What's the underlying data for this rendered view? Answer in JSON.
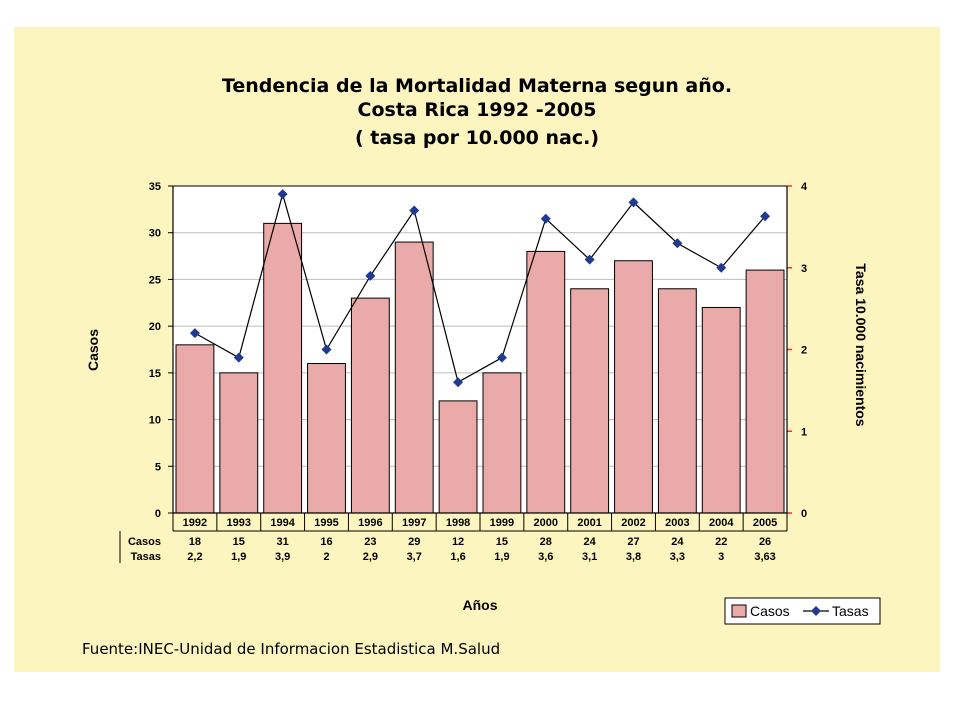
{
  "title": {
    "line1": "Tendencia de la Mortalidad Materna segun año.",
    "line2": "Costa Rica 1992 -2005",
    "line3": "( tasa por 10.000 nac.)"
  },
  "source": "Fuente:INEC-Unidad de Informacion Estadistica M.Salud",
  "colors": {
    "background": "#fdf5c0",
    "bar": "#eaaaaa",
    "line": "#000000",
    "marker": "#1f3a8f"
  },
  "chart_data": {
    "type": "bar",
    "categories": [
      "1992",
      "1993",
      "1994",
      "1995",
      "1996",
      "1997",
      "1998",
      "1999",
      "2000",
      "2001",
      "2002",
      "2003",
      "2004",
      "2005"
    ],
    "series": [
      {
        "name": "Casos",
        "type": "bar",
        "axis": "left",
        "values": [
          18,
          15,
          31,
          16,
          23,
          29,
          12,
          15,
          28,
          24,
          27,
          24,
          22,
          26
        ]
      },
      {
        "name": "Tasas",
        "type": "line",
        "axis": "right",
        "values": [
          2.2,
          1.9,
          3.9,
          2,
          2.9,
          3.7,
          1.6,
          1.9,
          3.6,
          3.1,
          3.8,
          3.3,
          3,
          3.63
        ]
      }
    ],
    "xlabel": "Años",
    "ylabel": "Casos",
    "y2label": "Tasa 10.000 nacimientos",
    "ylim": [
      0,
      35
    ],
    "y2lim": [
      0,
      4
    ],
    "yticks": [
      "0",
      "5",
      "10",
      "15",
      "20",
      "25",
      "30",
      "35"
    ],
    "y2ticks": [
      "0",
      "1",
      "2",
      "3",
      "4"
    ],
    "table": {
      "row_labels": [
        "Casos",
        "Tasas"
      ],
      "casos": [
        "18",
        "15",
        "31",
        "16",
        "23",
        "29",
        "12",
        "15",
        "28",
        "24",
        "27",
        "24",
        "22",
        "26"
      ],
      "tasas": [
        "2,2",
        "1,9",
        "3,9",
        "2",
        "2,9",
        "3,7",
        "1,6",
        "1,9",
        "3,6",
        "3,1",
        "3,8",
        "3,3",
        "3",
        "3,63"
      ]
    },
    "legend": [
      "Casos",
      "Tasas"
    ],
    "legend_position": "bottom-right",
    "grid": true
  }
}
